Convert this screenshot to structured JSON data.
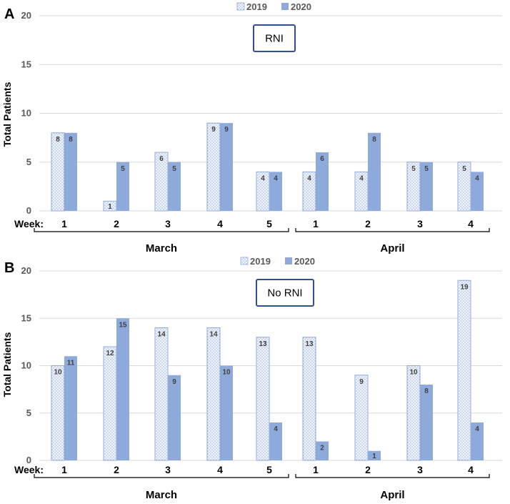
{
  "colors": {
    "series2019_fill": "#eef2fa",
    "series2019_dots": "#7f9bd0",
    "series2019_stroke": "#8eaadb",
    "series2020": "#8eaadb",
    "grid": "#d9d9d9",
    "bracket": "#000000",
    "box_border": "#2f4f8f"
  },
  "chart_data": [
    {
      "panel": "A",
      "type": "bar",
      "title": "RNI",
      "ylabel": "Total Patients",
      "ylim": [
        0,
        20
      ],
      "yticks": [
        0,
        5,
        10,
        15,
        20
      ],
      "week_label": "Week:",
      "categories": [
        "1",
        "2",
        "3",
        "4",
        "5",
        "1",
        "2",
        "3",
        "4"
      ],
      "groups": [
        {
          "name": "March",
          "count": 5
        },
        {
          "name": "April",
          "count": 4
        }
      ],
      "legend": [
        "2019",
        "2020"
      ],
      "series": [
        {
          "name": "2019",
          "values": [
            8,
            1,
            6,
            9,
            4,
            4,
            4,
            5,
            5
          ]
        },
        {
          "name": "2020",
          "values": [
            8,
            5,
            5,
            9,
            4,
            6,
            8,
            5,
            4
          ]
        }
      ]
    },
    {
      "panel": "B",
      "type": "bar",
      "title": "No RNI",
      "ylabel": "Total Patients",
      "ylim": [
        0,
        20
      ],
      "yticks": [
        0,
        5,
        10,
        15,
        20
      ],
      "week_label": "Week:",
      "categories": [
        "1",
        "2",
        "3",
        "4",
        "5",
        "1",
        "2",
        "3",
        "4"
      ],
      "groups": [
        {
          "name": "March",
          "count": 5
        },
        {
          "name": "April",
          "count": 4
        }
      ],
      "legend": [
        "2019",
        "2020"
      ],
      "series": [
        {
          "name": "2019",
          "values": [
            10,
            12,
            14,
            14,
            13,
            13,
            9,
            10,
            19
          ]
        },
        {
          "name": "2020",
          "values": [
            11,
            15,
            9,
            10,
            4,
            2,
            1,
            8,
            4
          ]
        }
      ]
    }
  ]
}
